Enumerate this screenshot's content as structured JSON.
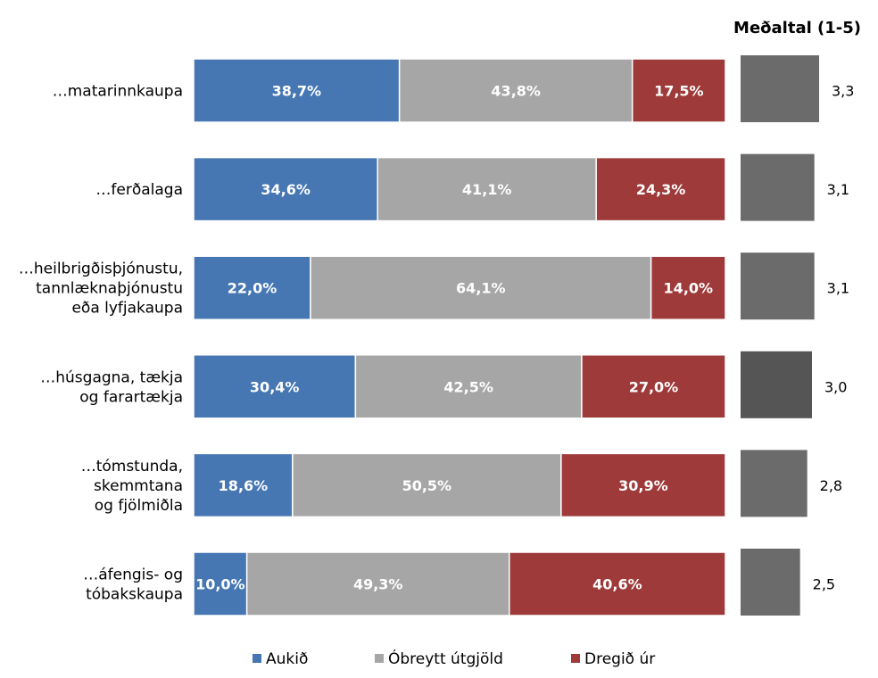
{
  "chart_data": [
    {
      "type": "bar",
      "orientation": "horizontal",
      "stacked": true,
      "normalized": true,
      "categories": [
        [
          "…matarinnkaupa"
        ],
        [
          "…ferðalaga"
        ],
        [
          "…heilbrigðisþjónustu,",
          "tannlæknaþjónustu",
          "eða lyfjakaupa"
        ],
        [
          "…húsgagna, tækja",
          "og farartækja"
        ],
        [
          "…tómstunda,",
          "skemmtana",
          "og fjölmiðla"
        ],
        [
          "…áfengis- og",
          "tóbakskaupa"
        ]
      ],
      "series": [
        {
          "name": "Aukið",
          "color": "#4677b3",
          "values": [
            38.7,
            34.6,
            22.0,
            30.4,
            18.6,
            10.0
          ],
          "labels": [
            "38,7%",
            "34,6%",
            "22,0%",
            "30,4%",
            "18,6%",
            "10,0%"
          ]
        },
        {
          "name": "Óbreytt útgjöld",
          "color": "#a6a6a6",
          "values": [
            43.8,
            41.1,
            64.1,
            42.5,
            50.5,
            49.3
          ],
          "labels": [
            "43,8%",
            "41,1%",
            "64,1%",
            "42,5%",
            "50,5%",
            "49,3%"
          ]
        },
        {
          "name": "Dregið úr",
          "color": "#9e3a3a",
          "values": [
            17.5,
            24.3,
            14.0,
            27.0,
            30.9,
            40.6
          ],
          "labels": [
            "17,5%",
            "24,3%",
            "14,0%",
            "27,0%",
            "30,9%",
            "40,6%"
          ]
        }
      ],
      "legend": "bottom",
      "grid": false
    },
    {
      "type": "bar",
      "orientation": "horizontal",
      "title": "Meðaltal (1-5)",
      "values": [
        3.3,
        3.1,
        3.1,
        3.0,
        2.8,
        2.5
      ],
      "labels": [
        "3,3",
        "3,1",
        "3,1",
        "3,0",
        "2,8",
        "2,5"
      ],
      "colors": [
        "#6b6b6b",
        "#6b6b6b",
        "#6b6b6b",
        "#555555",
        "#6b6b6b",
        "#6b6b6b"
      ],
      "xlim": [
        0,
        3.3
      ],
      "grid": false
    }
  ]
}
